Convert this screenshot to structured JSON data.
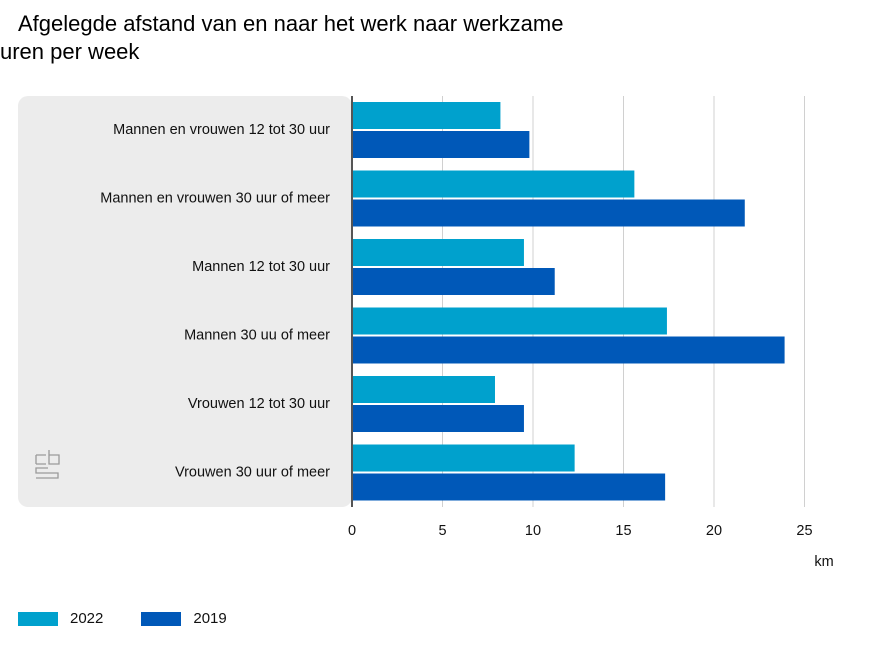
{
  "title_lines": [
    "Afgelegde afstand van en naar het werk naar werkzame",
    "uren per week"
  ],
  "chart_data": {
    "type": "bar",
    "orientation": "horizontal",
    "title": "Afgelegde afstand van en naar het werk naar werkzame uren per week",
    "categories": [
      "Mannen en vrouwen 12 tot 30 uur",
      "Mannen en vrouwen 30 uur of meer",
      "Mannen 12 tot 30 uur",
      "Mannen 30 uu of meer",
      "Vrouwen 12 tot 30 uur",
      "Vrouwen 30 uur of meer"
    ],
    "series": [
      {
        "name": "2022",
        "color": "#00a1cd",
        "values": [
          8.2,
          15.6,
          9.5,
          17.4,
          7.9,
          12.3
        ]
      },
      {
        "name": "2019",
        "color": "#0058b8",
        "values": [
          9.8,
          21.7,
          11.2,
          23.9,
          9.5,
          17.3
        ]
      }
    ],
    "xlim": [
      0,
      27
    ],
    "xticks": [
      0,
      5,
      10,
      15,
      20,
      25
    ],
    "xlabel": "km",
    "grid": true,
    "legend": "bottom-left"
  },
  "logo_text": "cbs"
}
